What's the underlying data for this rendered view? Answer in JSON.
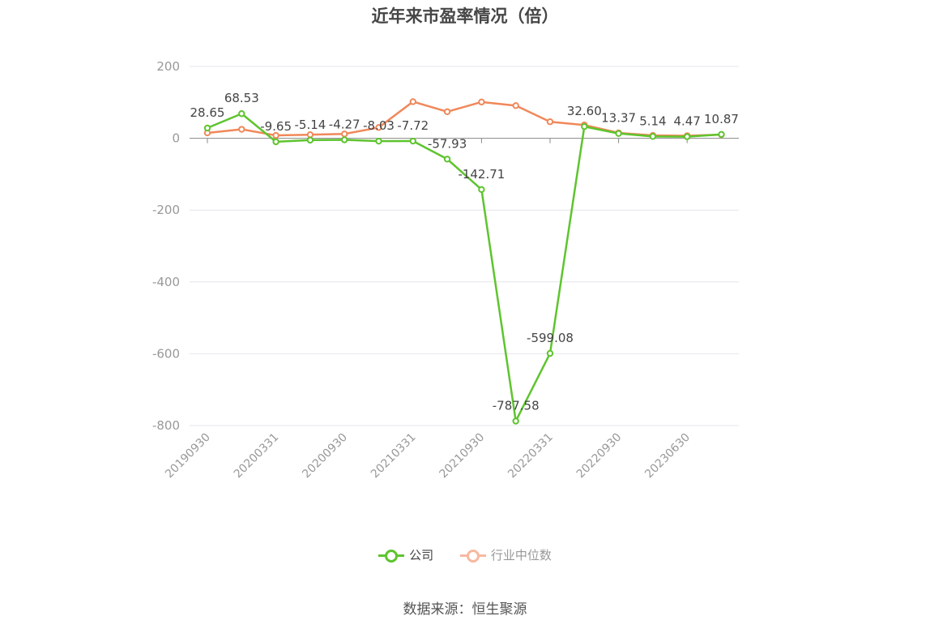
{
  "chart_data": {
    "type": "line",
    "title": "近年来市盈率情况（倍）",
    "xlabel": "",
    "ylabel": "",
    "x_tick_labels": [
      "20190930",
      "20200331",
      "20200930",
      "20210331",
      "20210930",
      "20220331",
      "20220930",
      "20230630"
    ],
    "y_ticks": [
      200,
      0,
      -200,
      -400,
      -600,
      -800
    ],
    "ylim": [
      -800,
      200
    ],
    "grid": true,
    "legend_position": "bottom",
    "series": [
      {
        "name": "公司",
        "color": "#5ec42e",
        "values": [
          28.65,
          68.53,
          -9.65,
          -5.14,
          -4.27,
          -8.03,
          -7.72,
          -57.93,
          -142.71,
          -787.58,
          -599.08,
          32.6,
          13.37,
          5.14,
          4.47,
          10.87
        ],
        "labels": [
          "28.65",
          "68.53",
          "-9.65",
          "-5.14",
          "-4.27",
          "-8.03",
          "-7.72",
          "-57.93",
          "-142.71",
          "-787.58",
          "-599.08",
          "32.60",
          "13.37",
          "5.14",
          "4.47",
          "10.87"
        ]
      },
      {
        "name": "行业中位数",
        "color": "#f0885a",
        "values": [
          15,
          25,
          8,
          10,
          12,
          30,
          102,
          74,
          101,
          91,
          46,
          37,
          15,
          8,
          7,
          10
        ]
      }
    ]
  },
  "legend": {
    "company": "公司",
    "industry": "行业中位数"
  },
  "source": "数据来源：恒生聚源"
}
